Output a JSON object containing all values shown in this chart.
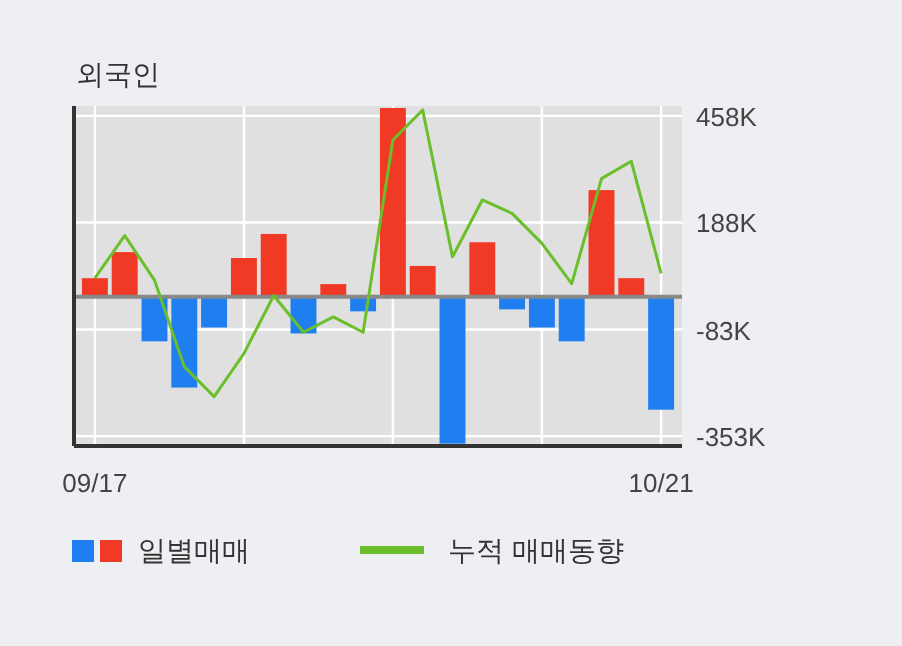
{
  "chart_data": {
    "type": "bar",
    "title": "외국인",
    "categories": [
      "09/17",
      null,
      null,
      null,
      null,
      null,
      null,
      null,
      null,
      null,
      null,
      null,
      null,
      null,
      null,
      null,
      null,
      null,
      null,
      "10/21"
    ],
    "series": [
      {
        "name": "일별매매",
        "colors": [
          "#f03a25",
          "#f03a25",
          "#1f7ef0",
          "#1f7ef0",
          "#1f7ef0",
          "#f03a25",
          "#f03a25",
          "#1f7ef0",
          "#f03a25",
          "#1f7ef0",
          "#f03a25",
          "#f03a25",
          "#1f7ef0",
          "#f03a25",
          "#1f7ef0",
          "#1f7ef0",
          "#1f7ef0",
          "#f03a25",
          "#f03a25",
          "#1f7ef0"
        ],
        "values": [
          47,
          113,
          -113,
          -230,
          -78,
          98,
          159,
          -93,
          32,
          -37,
          478,
          78,
          -372,
          138,
          -32,
          -78,
          -113,
          270,
          47,
          -286
        ]
      },
      {
        "name": "누적 매매동향",
        "type": "line",
        "color": "#6abf2a",
        "values": [
          47,
          155,
          42,
          -177,
          -253,
          -144,
          3,
          -90,
          -51,
          -90,
          397,
          473,
          101,
          245,
          211,
          135,
          33,
          299,
          343,
          59
        ]
      }
    ],
    "ylim": [
      -378,
      483
    ],
    "yticks": [
      {
        "value": 458,
        "label": "458K"
      },
      {
        "value": 188,
        "label": "188K"
      },
      {
        "value": -83,
        "label": "-83K"
      },
      {
        "value": -353,
        "label": "-353K"
      }
    ],
    "grid": true,
    "legend": "bottom"
  }
}
